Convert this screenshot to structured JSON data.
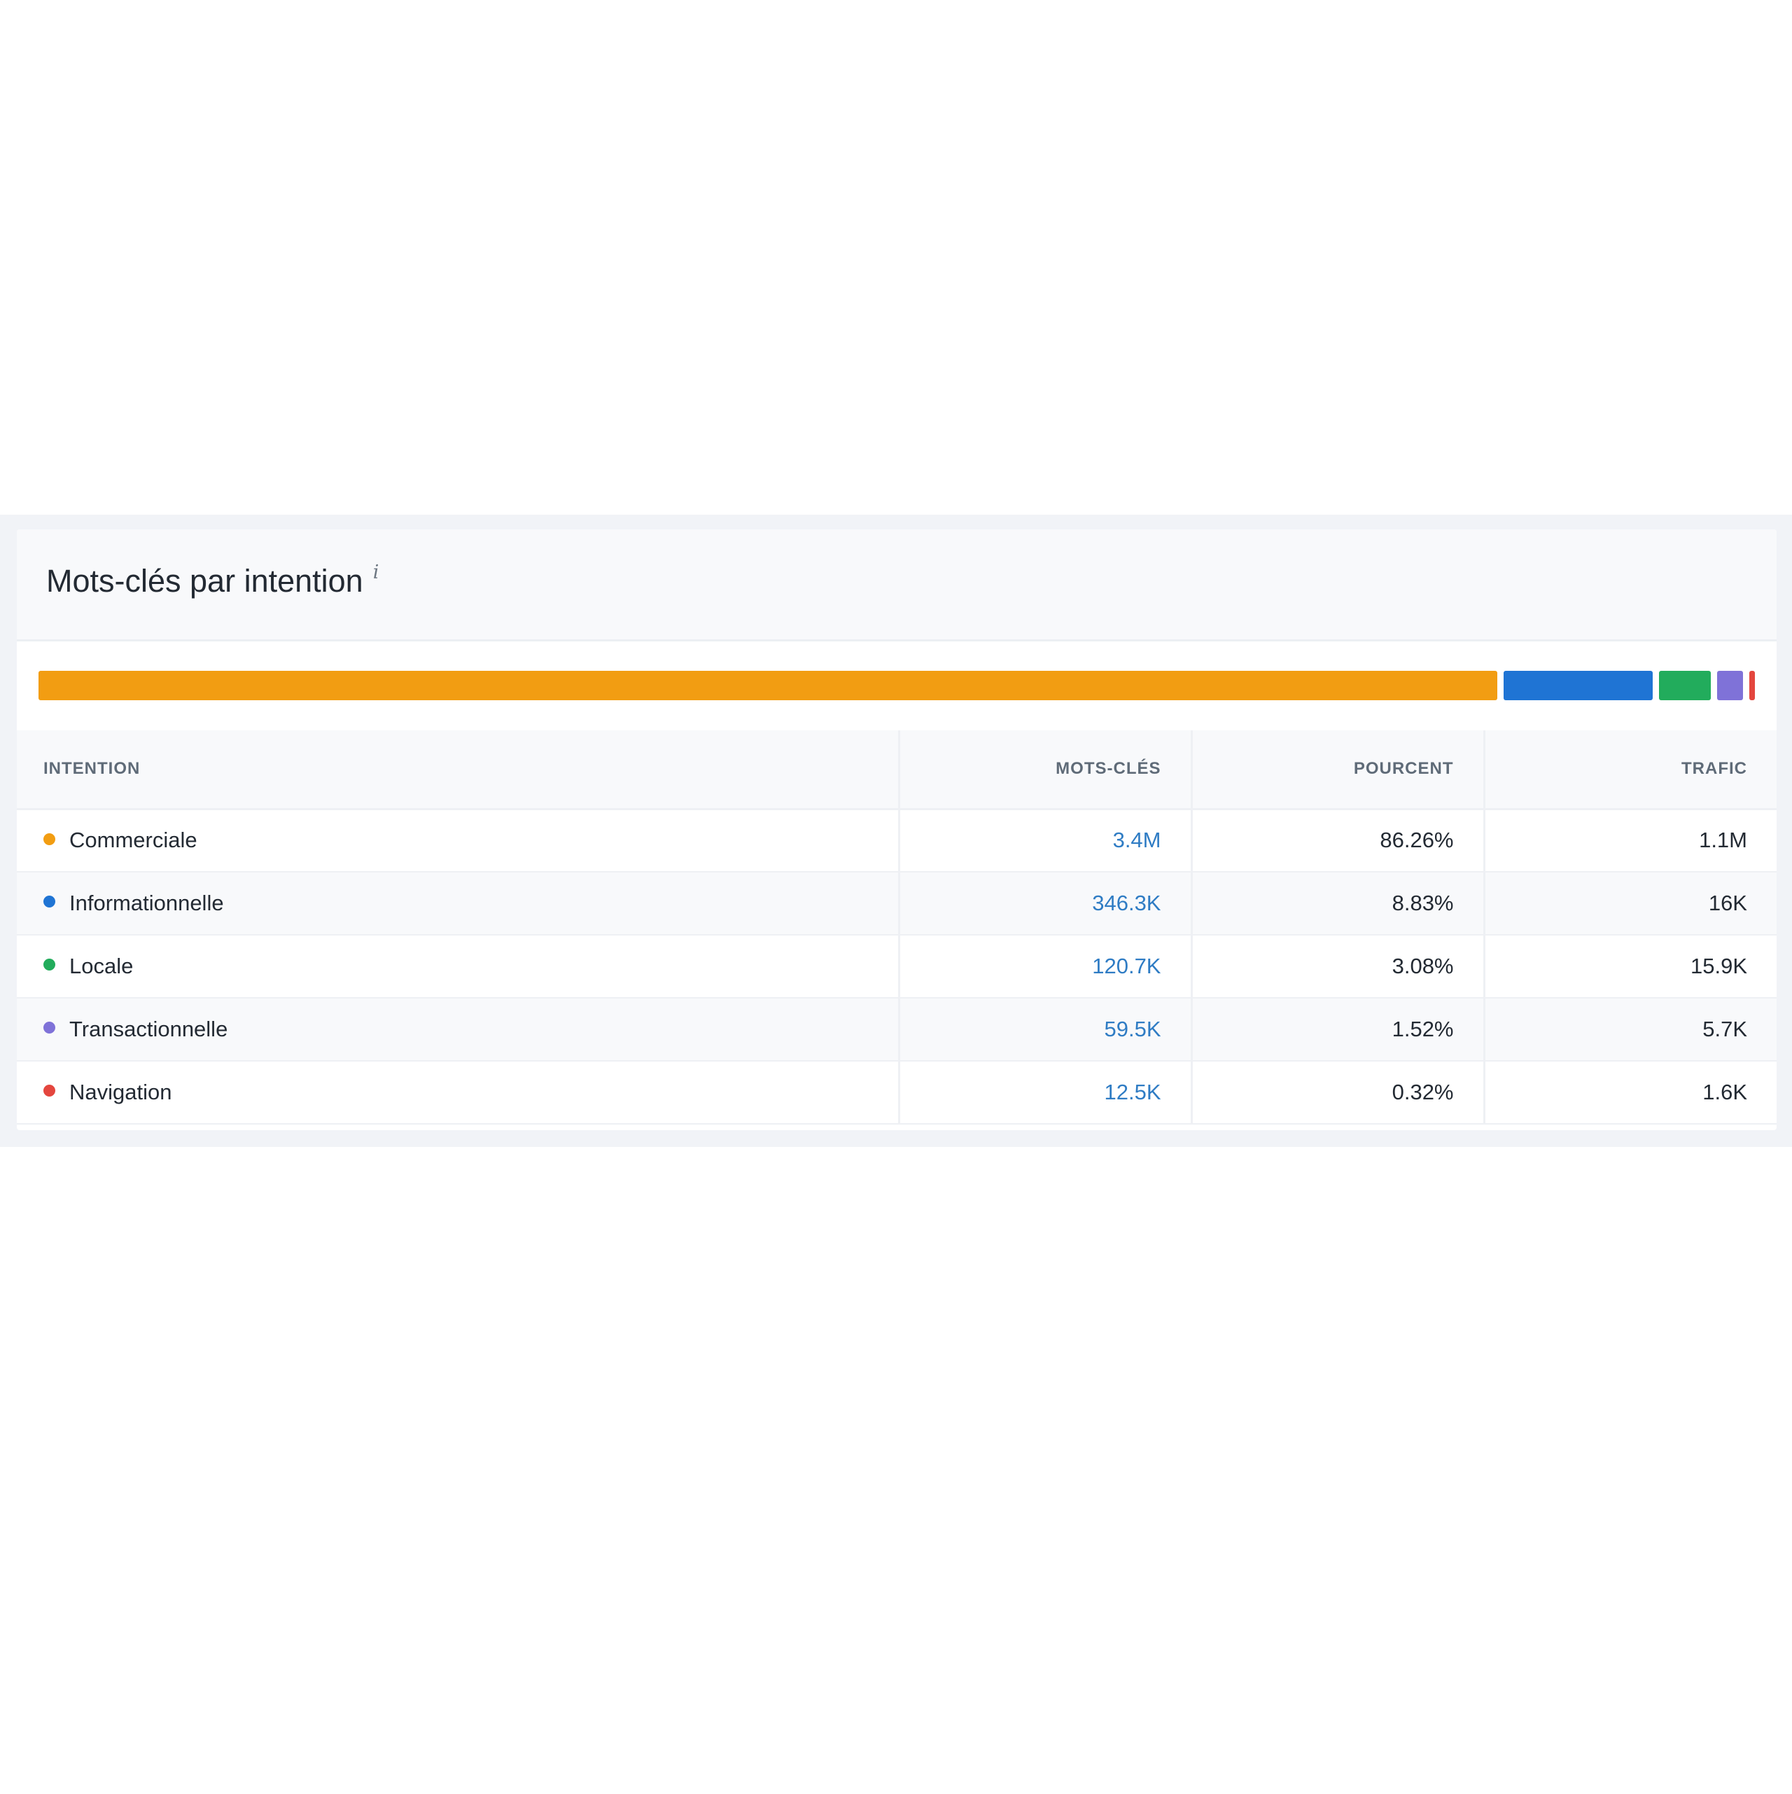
{
  "card": {
    "title": "Mots-clés par intention",
    "info_icon": "i"
  },
  "colors": {
    "commerciale": "#f29d12",
    "informationnelle": "#1f74d4",
    "locale": "#22ac5c",
    "transactionnelle": "#7f72d8",
    "navigation": "#e4463e",
    "link": "#2f7cc4"
  },
  "table": {
    "headers": {
      "intention": "INTENTION",
      "mots_cles": "MOTS-CLÉS",
      "pourcent": "POURCENT",
      "trafic": "TRAFIC"
    },
    "rows": [
      {
        "name": "Commerciale",
        "mots_cles": "3.4M",
        "pourcent": "86.26%",
        "trafic": "1.1M",
        "color": "#f29d12",
        "share": 86.26
      },
      {
        "name": "Informationnelle",
        "mots_cles": "346.3K",
        "pourcent": "8.83%",
        "trafic": "16K",
        "color": "#1f74d4",
        "share": 8.83
      },
      {
        "name": "Locale",
        "mots_cles": "120.7K",
        "pourcent": "3.08%",
        "trafic": "15.9K",
        "color": "#22ac5c",
        "share": 3.08
      },
      {
        "name": "Transactionnelle",
        "mots_cles": "59.5K",
        "pourcent": "1.52%",
        "trafic": "5.7K",
        "color": "#7f72d8",
        "share": 1.52
      },
      {
        "name": "Navigation",
        "mots_cles": "12.5K",
        "pourcent": "0.32%",
        "trafic": "1.6K",
        "color": "#e4463e",
        "share": 0.32
      }
    ]
  }
}
